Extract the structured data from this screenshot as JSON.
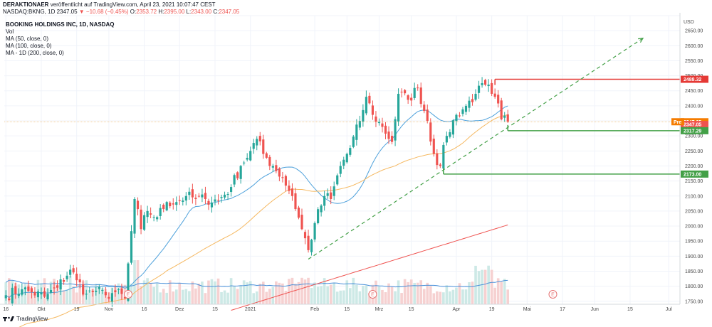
{
  "header": {
    "publisher": "DERAKTIONAER",
    "published_text": "veröffentlicht auf TradingView.com, April 23, 2021 10:07:47 CEST",
    "symbol": "NASDAQ:BKNG, 1D",
    "last": "2347.05",
    "change": "▼ −10.68 (−0.45%)",
    "o_label": "O:",
    "o": "2353.72",
    "h_label": "H:",
    "h": "2395.00",
    "l_label": "L:",
    "l": "2343.00",
    "c_label": "C:",
    "c": "2347.05"
  },
  "legend": {
    "title": "BOOKING HOLDINGS INC, 1D, NASDAQ",
    "lines": [
      "Vol",
      "MA (50, close, 0)",
      "MA (100, close, 0)",
      "MA - 1D (200, close, 0)"
    ]
  },
  "footer": {
    "brand": "TradingView"
  },
  "colors": {
    "up": "#26a69a",
    "down": "#ef5350",
    "vol_up": "#cde9e6",
    "vol_down": "#f6d1d1",
    "vol_ma": "#4a90d9",
    "ma50": "#4ea1db",
    "ma100": "#f5b860",
    "ma200": "#ef5350",
    "resistance": "#e53935",
    "support": "#43a047",
    "trend": "#43a047"
  },
  "chart_data": {
    "type": "candlestick",
    "currency_label": "USD",
    "y_range": [
      1740,
      2700
    ],
    "y_ticks": [
      1750,
      1800,
      1850,
      1900,
      1950,
      2000,
      2050,
      2100,
      2150,
      2200,
      2250,
      2300,
      2350,
      2400,
      2450,
      2500,
      2550,
      2600,
      2650,
      2700
    ],
    "x_labels": [
      {
        "label": "16",
        "bar": 0
      },
      {
        "label": "Okt",
        "bar": 11
      },
      {
        "label": "19",
        "bar": 22
      },
      {
        "label": "Nov",
        "bar": 32
      },
      {
        "label": "16",
        "bar": 43
      },
      {
        "label": "Dez",
        "bar": 54
      },
      {
        "label": "15",
        "bar": 65
      },
      {
        "label": "2021",
        "bar": 76
      },
      {
        "label": "Feb",
        "bar": 96
      },
      {
        "label": "15",
        "bar": 106
      },
      {
        "label": "Mrz",
        "bar": 116
      },
      {
        "label": "15",
        "bar": 126
      },
      {
        "label": "Apr",
        "bar": 140
      },
      {
        "label": "19",
        "bar": 151
      },
      {
        "label": "Mai",
        "bar": 162
      },
      {
        "label": "17",
        "bar": 173
      },
      {
        "label": "Jun",
        "bar": 183
      },
      {
        "label": "15",
        "bar": 194
      },
      {
        "label": "Jul",
        "bar": 206
      }
    ],
    "bars_total_slots": 210,
    "anchors": [
      [
        0,
        1770
      ],
      [
        5,
        1790
      ],
      [
        8,
        1780
      ],
      [
        12,
        1765
      ],
      [
        16,
        1795
      ],
      [
        20,
        1855
      ],
      [
        22,
        1820
      ],
      [
        25,
        1775
      ],
      [
        28,
        1785
      ],
      [
        31,
        1770
      ],
      [
        34,
        1780
      ],
      [
        37,
        1760
      ],
      [
        40,
        2090
      ],
      [
        42,
        1990
      ],
      [
        44,
        2050
      ],
      [
        47,
        2030
      ],
      [
        50,
        2080
      ],
      [
        53,
        2080
      ],
      [
        56,
        2100
      ],
      [
        59,
        2090
      ],
      [
        62,
        2090
      ],
      [
        66,
        2085
      ],
      [
        70,
        2130
      ],
      [
        73,
        2200
      ],
      [
        76,
        2250
      ],
      [
        78,
        2290
      ],
      [
        80,
        2240
      ],
      [
        83,
        2200
      ],
      [
        86,
        2160
      ],
      [
        89,
        2100
      ],
      [
        92,
        1990
      ],
      [
        94,
        1920
      ],
      [
        96,
        2010
      ],
      [
        99,
        2100
      ],
      [
        101,
        2090
      ],
      [
        104,
        2200
      ],
      [
        107,
        2260
      ],
      [
        110,
        2350
      ],
      [
        112,
        2430
      ],
      [
        114,
        2370
      ],
      [
        117,
        2330
      ],
      [
        120,
        2280
      ],
      [
        122,
        2440
      ],
      [
        125,
        2420
      ],
      [
        128,
        2460
      ],
      [
        131,
        2350
      ],
      [
        133,
        2240
      ],
      [
        135,
        2200
      ],
      [
        137,
        2300
      ],
      [
        140,
        2370
      ],
      [
        143,
        2400
      ],
      [
        146,
        2440
      ],
      [
        149,
        2470
      ],
      [
        151,
        2440
      ],
      [
        152,
        2430
      ],
      [
        154,
        2355
      ],
      [
        156,
        2347
      ]
    ],
    "current_price": 2347.05,
    "pre_label": "Pre",
    "price_tags": [
      {
        "label": "2488.32",
        "value": 2488.32,
        "color": "#e53935"
      },
      {
        "label": "2347.05",
        "value": 2347.05,
        "color": "#f57c00"
      },
      {
        "label": "2347.05",
        "value": 2338,
        "color": "#ef5350"
      },
      {
        "label": "2317.29",
        "value": 2317.29,
        "color": "#43a047"
      },
      {
        "label": "2173.00",
        "value": 2173.0,
        "color": "#43a047"
      }
    ],
    "resistance_line": {
      "value": 2488.32,
      "from_bar": 152
    },
    "support_lines": [
      {
        "value": 2317.29,
        "from_bar": 156
      },
      {
        "value": 2173.0,
        "from_bar": 136
      }
    ],
    "trendline": {
      "from": [
        94,
        1890
      ],
      "to": [
        198,
        2625
      ]
    },
    "event_markers": [
      {
        "label": "E",
        "bar": 38
      },
      {
        "label": "E",
        "bar": 114
      },
      {
        "label": "E",
        "bar": 170
      }
    ]
  }
}
